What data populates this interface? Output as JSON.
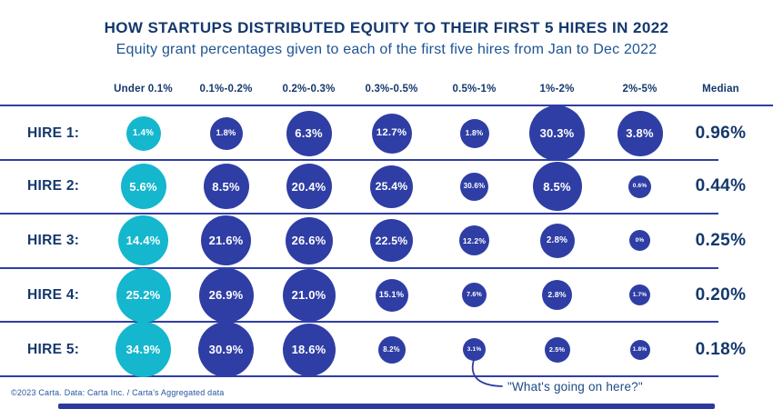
{
  "title": "HOW STARTUPS DISTRIBUTED EQUITY TO THEIR FIRST 5 HIRES IN 2022",
  "subtitle": "Equity grant percentages given to each of the first five hires from Jan to Dec 2022",
  "columns": [
    "Under 0.1%",
    "0.1%-0.2%",
    "0.2%-0.3%",
    "0.3%-0.5%",
    "0.5%-1%",
    "1%-2%",
    "2%-5%",
    "Median"
  ],
  "rows": [
    {
      "label": "HIRE 1:",
      "median": "0.96%",
      "bubbles": [
        {
          "value": "1.4%",
          "size": 38,
          "color": "teal"
        },
        {
          "value": "1.8%",
          "size": 36,
          "color": "blue"
        },
        {
          "value": "6.3%",
          "size": 50,
          "color": "blue"
        },
        {
          "value": "12.7%",
          "size": 44,
          "color": "blue"
        },
        {
          "value": "1.8%",
          "size": 32,
          "color": "blue"
        },
        {
          "value": "30.3%",
          "size": 61,
          "color": "blue"
        },
        {
          "value": "3.8%",
          "size": 50,
          "color": "blue"
        }
      ]
    },
    {
      "label": "HIRE 2:",
      "median": "0.44%",
      "bubbles": [
        {
          "value": "5.6%",
          "size": 50,
          "color": "teal"
        },
        {
          "value": "8.5%",
          "size": 50,
          "color": "blue"
        },
        {
          "value": "20.4%",
          "size": 50,
          "color": "blue"
        },
        {
          "value": "25.4%",
          "size": 47,
          "color": "blue"
        },
        {
          "value": "30.6%",
          "size": 31,
          "color": "blue"
        },
        {
          "value": "8.5%",
          "size": 54,
          "color": "blue"
        },
        {
          "value": "0.6%",
          "size": 25,
          "color": "blue"
        }
      ]
    },
    {
      "label": "HIRE 3:",
      "median": "0.25%",
      "bubbles": [
        {
          "value": "14.4%",
          "size": 55,
          "color": "teal"
        },
        {
          "value": "21.6%",
          "size": 55,
          "color": "blue"
        },
        {
          "value": "26.6%",
          "size": 52,
          "color": "blue"
        },
        {
          "value": "22.5%",
          "size": 47,
          "color": "blue"
        },
        {
          "value": "12.2%",
          "size": 33,
          "color": "blue"
        },
        {
          "value": "2.8%",
          "size": 38,
          "color": "blue"
        },
        {
          "value": "0%",
          "size": 23,
          "color": "blue"
        }
      ]
    },
    {
      "label": "HIRE 4:",
      "median": "0.20%",
      "bubbles": [
        {
          "value": "25.2%",
          "size": 60,
          "color": "teal"
        },
        {
          "value": "26.9%",
          "size": 60,
          "color": "blue"
        },
        {
          "value": "21.0%",
          "size": 58,
          "color": "blue"
        },
        {
          "value": "15.1%",
          "size": 36,
          "color": "blue"
        },
        {
          "value": "7.6%",
          "size": 27,
          "color": "blue"
        },
        {
          "value": "2.8%",
          "size": 33,
          "color": "blue"
        },
        {
          "value": "1.7%",
          "size": 23,
          "color": "blue"
        }
      ]
    },
    {
      "label": "HIRE 5:",
      "median": "0.18%",
      "bubbles": [
        {
          "value": "34.9%",
          "size": 61,
          "color": "teal"
        },
        {
          "value": "30.9%",
          "size": 61,
          "color": "blue"
        },
        {
          "value": "18.6%",
          "size": 58,
          "color": "blue"
        },
        {
          "value": "8.2%",
          "size": 30,
          "color": "blue"
        },
        {
          "value": "3.1%",
          "size": 25,
          "color": "blue"
        },
        {
          "value": "2.5%",
          "size": 28,
          "color": "blue"
        },
        {
          "value": "1.8%",
          "size": 22,
          "color": "blue"
        }
      ]
    }
  ],
  "footer": "©2023 Carta. Data: Carta Inc. / Carta's Aggregated data",
  "annotation": "\"What's going on here?\"",
  "colors": {
    "navy_text": "#14386c",
    "subtitle_blue": "#1d5493",
    "bubble_blue": "#2f3ea4",
    "bubble_teal": "#14b7cd",
    "divider_line": "#2f3ea4"
  },
  "chart_data": {
    "type": "table",
    "title": "HOW STARTUPS DISTRIBUTED EQUITY TO THEIR FIRST 5 HIRES IN 2022",
    "subtitle": "Equity grant percentages given to each of the first five hires from Jan to Dec 2022",
    "columns": [
      "Under 0.1%",
      "0.1%-0.2%",
      "0.2%-0.3%",
      "0.3%-0.5%",
      "0.5%-1%",
      "1%-2%",
      "2%-5%"
    ],
    "rows": [
      {
        "label": "HIRE 1",
        "values_pct": [
          1.4,
          1.8,
          6.3,
          12.7,
          1.8,
          30.3,
          3.8
        ],
        "median_pct": 0.96
      },
      {
        "label": "HIRE 2",
        "values_pct": [
          5.6,
          8.5,
          20.4,
          25.4,
          30.6,
          8.5,
          0.6
        ],
        "median_pct": 0.44
      },
      {
        "label": "HIRE 3",
        "values_pct": [
          14.4,
          21.6,
          26.6,
          22.5,
          12.2,
          2.8,
          0
        ],
        "median_pct": 0.25
      },
      {
        "label": "HIRE 4",
        "values_pct": [
          25.2,
          26.9,
          21.0,
          15.1,
          7.6,
          2.8,
          1.7
        ],
        "median_pct": 0.2
      },
      {
        "label": "HIRE 5",
        "values_pct": [
          34.9,
          30.9,
          18.6,
          8.2,
          3.1,
          2.5,
          1.8
        ],
        "median_pct": 0.18
      }
    ],
    "legend_position": "none",
    "grid": "horizontal-dividers",
    "annotation_target": {
      "row": "HIRE 5",
      "column": "0.5%-1%",
      "value_pct": 3.1
    }
  }
}
